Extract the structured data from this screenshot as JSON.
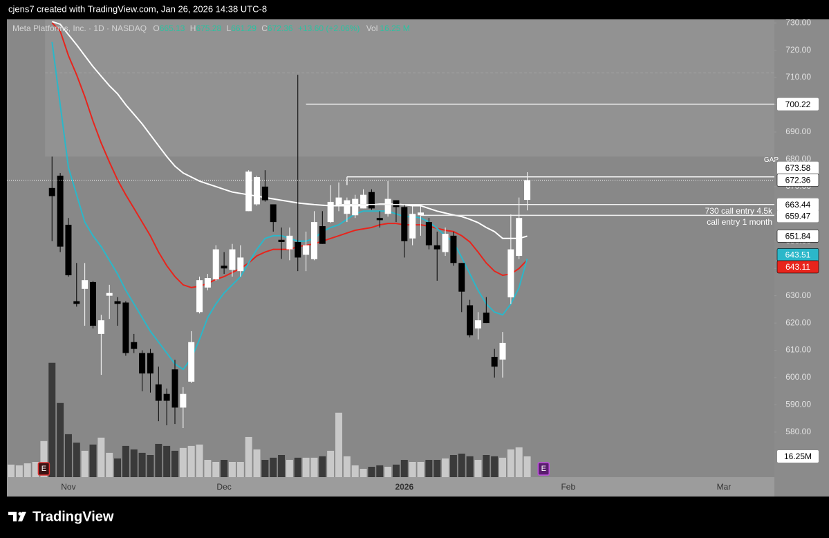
{
  "header": {
    "credit": "cjens7 created with TradingView.com, Jan 26, 2026 14:38 UTC-8",
    "logo": "TradingView"
  },
  "chart_data": {
    "type": "candlestick",
    "title": "Meta Platforms, Inc. · 1D · NASDAQ",
    "legend": {
      "o": "O",
      "h": "H",
      "l": "L",
      "c": "C",
      "change": "+13.60 (+2.06%)",
      "vol": "Vol",
      "vol_value": "16.25 M"
    },
    "categories": [
      null,
      null,
      null,
      null,
      null,
      null,
      null,
      "Nov",
      null,
      null,
      null,
      null,
      null,
      null,
      null,
      null,
      null,
      null,
      null,
      null,
      null,
      null,
      null,
      null,
      null,
      null,
      "Dec",
      null,
      null,
      null,
      null,
      null,
      null,
      null,
      null,
      null,
      null,
      null,
      null,
      null,
      null,
      null,
      null,
      null,
      null,
      null,
      null,
      null,
      "2026",
      null,
      null,
      null,
      null,
      null,
      null,
      null,
      null,
      null,
      null,
      null,
      null,
      null,
      null,
      null,
      null,
      null,
      null,
      null,
      "Feb",
      null,
      null,
      null,
      null,
      null,
      null,
      null,
      null,
      null,
      null,
      null,
      null,
      null,
      null,
      null,
      null,
      null,
      null,
      "Mar"
    ],
    "open": [
      null,
      null,
      null,
      null,
      null,
      669.5,
      674,
      656,
      628,
      632.5,
      635,
      616,
      630,
      628,
      627.5,
      613,
      609,
      609,
      597.5,
      594,
      603,
      589,
      598.5,
      624,
      633,
      636,
      641,
      639.5,
      639,
      661,
      663.5,
      670,
      663.5,
      650.5,
      647,
      649.7,
      645,
      643.4,
      655.5,
      657,
      663,
      660,
      659.5,
      662,
      668,
      658.5,
      660,
      665,
      662.5,
      651,
      659.5,
      657,
      648.5,
      646,
      652,
      642,
      626.5,
      618,
      623.8,
      607.6,
      606.6,
      629.4,
      644.6,
      665.13,
      null,
      null,
      null,
      null,
      null,
      null,
      null,
      null,
      null,
      null,
      null,
      null,
      null,
      null,
      null,
      null,
      null,
      null,
      null,
      null,
      null,
      null,
      null,
      null
    ],
    "high": [
      null,
      null,
      null,
      null,
      null,
      681,
      675,
      658.5,
      642,
      642,
      635.5,
      623,
      634,
      629.5,
      628,
      616,
      610,
      610.5,
      604,
      596,
      606.5,
      596.5,
      617,
      637,
      638,
      648.5,
      646,
      649,
      648.5,
      676,
      674,
      676,
      663.5,
      655,
      655,
      711,
      653.5,
      661,
      661,
      670.5,
      671.5,
      666,
      667,
      669,
      669,
      661,
      672,
      665,
      663.5,
      663.5,
      663.5,
      658.5,
      653.5,
      655,
      653.5,
      642,
      628.5,
      624,
      629.5,
      610.5,
      616.7,
      659.8,
      666,
      675.28,
      null,
      null,
      null,
      null,
      null,
      null,
      null,
      null,
      null,
      null,
      null,
      null,
      null,
      null,
      null,
      null,
      null,
      null,
      null,
      null,
      null,
      null,
      null,
      null
    ],
    "low": [
      null,
      null,
      null,
      null,
      null,
      650,
      646,
      637,
      626,
      619,
      618,
      601,
      621.5,
      619,
      608,
      609,
      595,
      594.5,
      584,
      582.5,
      583,
      581.5,
      598,
      623.5,
      632,
      635.5,
      638,
      637,
      637,
      661,
      663,
      664.5,
      653.5,
      643.5,
      643,
      639,
      639,
      643,
      649,
      656.7,
      661,
      657,
      658.5,
      662,
      661.5,
      655,
      659,
      657,
      644,
      648.5,
      652,
      647,
      635.5,
      644.6,
      641,
      624,
      614.7,
      614,
      620,
      600,
      600,
      626.9,
      643.4,
      661.29,
      null,
      null,
      null,
      null,
      null,
      null,
      null,
      null,
      null,
      null,
      null,
      null,
      null,
      null,
      null,
      null,
      null,
      null,
      null,
      null,
      null,
      null,
      null,
      null
    ],
    "close": [
      null,
      null,
      null,
      null,
      null,
      666.5,
      648,
      637.5,
      627,
      635.7,
      619,
      621,
      631,
      627,
      609,
      610.5,
      601.5,
      601.5,
      591.5,
      591.5,
      589,
      594,
      613,
      635.7,
      636.5,
      647,
      640,
      647,
      644,
      675.5,
      673.5,
      665,
      657,
      649.7,
      652,
      644,
      648.5,
      657,
      649,
      664.4,
      666,
      665,
      665.5,
      667,
      662,
      657.7,
      665.5,
      662.5,
      650,
      660,
      660.5,
      648.5,
      647,
      652.7,
      642,
      631.5,
      615.5,
      621,
      620,
      604,
      612.7,
      647,
      658.5,
      672.36,
      null,
      null,
      null,
      null,
      null,
      null,
      null,
      null,
      null,
      null,
      null,
      null,
      null,
      null,
      null,
      null,
      null,
      null,
      null,
      null,
      null,
      null,
      null,
      null
    ],
    "up_color": "#ffffff",
    "down_color": "#000000",
    "lines": [
      {
        "color": "#ffffff",
        "values": [
          null,
          null,
          null,
          null,
          null,
          730.5,
          729.5,
          725.7,
          722,
          718,
          714,
          710.5,
          707,
          704,
          700,
          696.5,
          693,
          689,
          685,
          681,
          677.5,
          675,
          673.5,
          672,
          671,
          670,
          669,
          668,
          667.5,
          667,
          666.5,
          666,
          665.5,
          665,
          664.5,
          664,
          663.7,
          663.4,
          663.2,
          663,
          663,
          663,
          663,
          663,
          663.3,
          663.6,
          663.6,
          663.6,
          663.3,
          663,
          663,
          662,
          661,
          660.3,
          659.6,
          659,
          658,
          656.8,
          655,
          653.5,
          651,
          651,
          651,
          651.84,
          null,
          null,
          null,
          null,
          null,
          null,
          null,
          null,
          null,
          null,
          null,
          null,
          null,
          null,
          null,
          null,
          null,
          null,
          null,
          null,
          null,
          null,
          null,
          null
        ]
      },
      {
        "color": "#e8241c",
        "values": [
          null,
          null,
          null,
          null,
          null,
          730,
          727,
          718,
          711,
          703,
          694,
          686,
          679,
          672.5,
          667,
          662,
          657,
          652,
          646,
          641,
          637,
          634,
          633,
          633.5,
          634.5,
          636,
          637,
          638.5,
          640,
          642,
          644.6,
          646,
          647,
          647,
          647,
          648,
          648.5,
          649,
          650,
          651,
          652,
          653,
          654,
          654.5,
          655,
          656,
          656.5,
          656.5,
          656,
          656,
          656,
          655.5,
          654.7,
          654,
          653.5,
          652,
          649.7,
          646,
          642,
          639,
          637.5,
          638,
          640,
          643.11,
          null,
          null,
          null,
          null,
          null,
          null,
          null,
          null,
          null,
          null,
          null,
          null,
          null,
          null,
          null,
          null,
          null,
          null,
          null,
          null,
          null,
          null,
          null,
          null
        ]
      },
      {
        "color": "#2bb7c9",
        "values": [
          null,
          null,
          null,
          null,
          null,
          723,
          700,
          677,
          667,
          657,
          652,
          648,
          643,
          638,
          632,
          627,
          622,
          617,
          613,
          609,
          605,
          603,
          607,
          614,
          622,
          627,
          631,
          634,
          637,
          642,
          647,
          651,
          652,
          652,
          651,
          650,
          650,
          651,
          653.5,
          655,
          656,
          658,
          660,
          661,
          661,
          661,
          661,
          660,
          659,
          659,
          658.5,
          657,
          654.7,
          652,
          649.7,
          644,
          638,
          632,
          627,
          624,
          623,
          627,
          633,
          643.51,
          null,
          null,
          null,
          null,
          null,
          null,
          null,
          null,
          null,
          null,
          null,
          null,
          null,
          null,
          null,
          null,
          null,
          null,
          null,
          null,
          null,
          null,
          null,
          null
        ]
      }
    ],
    "ylim": [
      563.5,
      731.3
    ],
    "yticks": [
      {
        "value": 580,
        "label": "580.00"
      },
      {
        "value": 590,
        "label": "590.00"
      },
      {
        "value": 600,
        "label": "600.00"
      },
      {
        "value": 610,
        "label": "610.00"
      },
      {
        "value": 620,
        "label": "620.00"
      },
      {
        "value": 630,
        "label": "630.00"
      },
      {
        "value": 640,
        "label": "640.00"
      },
      {
        "value": 650,
        "label": "650.00"
      },
      {
        "value": 660,
        "label": "660.00"
      },
      {
        "value": 670,
        "label": "670.00"
      },
      {
        "value": 680,
        "label": "680.00"
      },
      {
        "value": 690,
        "label": "690.00"
      },
      {
        "value": 700,
        "label": "700.00"
      },
      {
        "value": 710,
        "label": "710.00"
      },
      {
        "value": 720,
        "label": "720.00"
      },
      {
        "value": 730,
        "label": "730.00"
      }
    ],
    "volume": {
      "values": [
        9.8,
        9.2,
        10.8,
        11.9,
        28.2,
        89.4,
        58,
        33.6,
        27,
        20.6,
        25.5,
        30.9,
        19,
        14.6,
        24.4,
        21.7,
        19,
        17.3,
        26,
        24.4,
        20.6,
        22.8,
        24.4,
        25.5,
        13.5,
        11.9,
        13.5,
        11.9,
        11.9,
        31.4,
        21.7,
        13.5,
        15.2,
        17.3,
        13.5,
        15.2,
        15.2,
        15.2,
        16.3,
        20.6,
        50.4,
        16.3,
        9.2,
        6.5,
        8.1,
        9.2,
        8.1,
        9.8,
        13.5,
        11.9,
        11.9,
        13.5,
        13.5,
        14.6,
        17.3,
        18.4,
        16.3,
        13.5,
        17.3,
        16.3,
        15.2,
        21.7,
        23.3,
        16.25,
        null,
        null,
        null,
        null,
        null,
        null,
        null,
        null,
        null,
        null,
        null,
        null,
        null,
        null,
        null,
        null,
        null,
        null,
        null,
        null,
        null,
        null,
        null,
        null
      ],
      "ylim": [
        0,
        358
      ],
      "label": "16.25M",
      "up_color": "#c9c9c9",
      "down_color": "#3a3a3a"
    },
    "levels": [
      {
        "value": 700.22,
        "label": "700.22"
      },
      {
        "value": 673.58,
        "label": "673.58"
      },
      {
        "value": 663.44,
        "label": "663.44"
      },
      {
        "value": 659.47,
        "label": "659.47"
      }
    ],
    "gap": {
      "label": "GAP",
      "low": 681,
      "high": 711.7
    },
    "annotations": [
      "730 call entry 4.5k",
      "call entry 1 month"
    ],
    "earnings_marker": "E"
  }
}
